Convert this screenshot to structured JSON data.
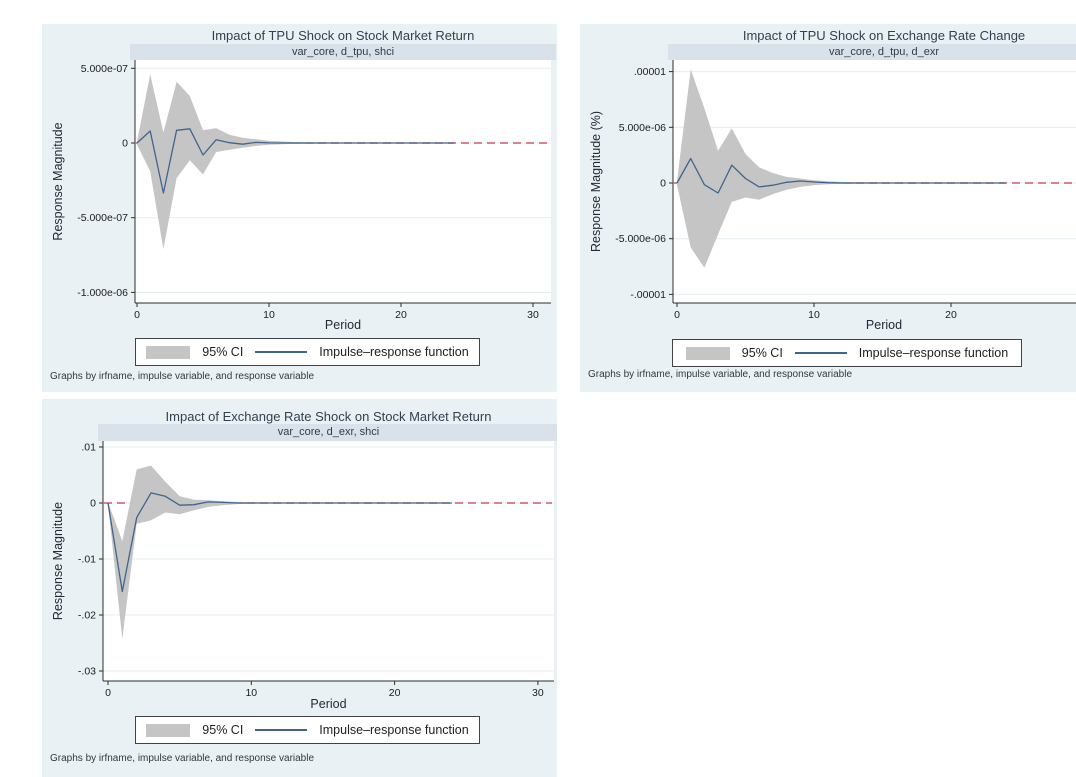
{
  "colors": {
    "canvas_background": "#ffffff",
    "tile_background": "#eaf1f5",
    "subtitle_band": "#d9e2ea",
    "plot_background": "#ffffff",
    "gridline": "#e3ecf1",
    "axis": "#2c2c2c",
    "ci_band": "#c5c5c5",
    "irf_line": "#41648c",
    "zero_line_red": "#cd5869",
    "title_text": "#32414f"
  },
  "chart_data": [
    {
      "type": "area+line",
      "title": "Impact of TPU Shock on Stock Market Return",
      "subtitle": "var_core, d_tpu, shci",
      "xlabel": "Period",
      "ylabel": "Response Magnitude",
      "footnote": "Graphs by irfname, impulse variable, and response variable",
      "legend_ci": "95% CI",
      "legend_irf": "Impulse–response function",
      "legend_position": "bottom-center",
      "grid": true,
      "xlim": [
        0,
        30
      ],
      "ylim": [
        -1.07e-06,
        5.6e-07
      ],
      "xticks": [
        0,
        10,
        20,
        30
      ],
      "yticks": [
        {
          "label": "5.000e-07",
          "value": 5e-07
        },
        {
          "label": "0",
          "value": 0
        },
        {
          "label": "-5.000e-07",
          "value": -5e-07
        },
        {
          "label": "-1.000e-06",
          "value": -1e-06
        }
      ],
      "zero_reference_line": {
        "value": 0,
        "style": "dashed"
      },
      "periods": [
        0,
        1,
        2,
        3,
        4,
        5,
        6,
        7,
        8,
        9,
        10,
        11,
        12,
        13,
        14,
        15,
        16,
        17,
        18,
        19,
        20,
        21,
        22,
        23,
        24
      ],
      "irf": [
        0,
        8e-08,
        -3.35e-07,
        8.5e-08,
        9.5e-08,
        -8e-08,
        2.2e-08,
        2e-09,
        -8e-09,
        4e-09,
        1e-09,
        0,
        0,
        0,
        0,
        0,
        0,
        0,
        0,
        0,
        0,
        0,
        0,
        0,
        0
      ],
      "ci_upper": [
        1e-08,
        4.6e-07,
        7e-08,
        4.1e-07,
        3.15e-07,
        8.5e-08,
        1e-07,
        5.5e-08,
        3.5e-08,
        2.5e-08,
        1.5e-08,
        1e-08,
        7e-09,
        5e-09,
        4e-09,
        3e-09,
        3e-09,
        2e-09,
        2e-09,
        2e-09,
        2e-09,
        2e-09,
        2e-09,
        2e-09,
        2e-09
      ],
      "ci_lower": [
        -1e-08,
        -1.9e-07,
        -7.1e-07,
        -2.35e-07,
        -1.15e-07,
        -2.1e-07,
        -6e-08,
        -4.5e-08,
        -3.2e-08,
        -2e-08,
        -1.2e-08,
        -8e-09,
        -6e-09,
        -5e-09,
        -4e-09,
        -3e-09,
        -3e-09,
        -2e-09,
        -2e-09,
        -2e-09,
        -2e-09,
        -2e-09,
        -2e-09,
        -2e-09,
        -2e-09
      ]
    },
    {
      "type": "area+line",
      "title": "Impact of TPU Shock on Exchange Rate Change",
      "subtitle": "var_core, d_tpu, d_exr",
      "xlabel": "Period",
      "ylabel": "Response Magnitude (%)",
      "footnote": "Graphs by irfname, impulse variable, and response variable",
      "legend_ci": "95% CI",
      "legend_irf": "Impulse–response function",
      "legend_position": "bottom-center",
      "grid": true,
      "xlim": [
        0,
        30
      ],
      "ylim": [
        -1.08e-05,
        1.1e-05
      ],
      "xticks": [
        0,
        10,
        20,
        30
      ],
      "yticks": [
        {
          "label": ".00001",
          "value": 1e-05
        },
        {
          "label": "5.000e-06",
          "value": 5e-06
        },
        {
          "label": "0",
          "value": 0
        },
        {
          "label": "-5.000e-06",
          "value": -5e-06
        },
        {
          "label": "-.00001",
          "value": -1e-05
        }
      ],
      "zero_reference_line": {
        "value": 0,
        "style": "dashed"
      },
      "periods": [
        0,
        1,
        2,
        3,
        4,
        5,
        6,
        7,
        8,
        9,
        10,
        11,
        12,
        13,
        14,
        15,
        16,
        17,
        18,
        19,
        20,
        21,
        22,
        23,
        24
      ],
      "irf": [
        0,
        2.2e-06,
        -1.5e-07,
        -9e-07,
        1.6e-06,
        4e-07,
        -3.5e-07,
        -2e-07,
        6e-08,
        1.8e-07,
        9e-08,
        3e-08,
        0,
        0,
        0,
        0,
        0,
        0,
        0,
        0,
        0,
        0,
        0,
        0,
        0
      ],
      "ci_upper": [
        1.5e-07,
        1.02e-05,
        6.7e-06,
        2.9e-06,
        4.9e-06,
        2.6e-06,
        1.4e-06,
        9e-07,
        5.5e-07,
        4e-07,
        2.5e-07,
        1.5e-07,
        1e-07,
        7e-08,
        5e-08,
        4e-08,
        3e-08,
        3e-08,
        2e-08,
        2e-08,
        2e-08,
        2e-08,
        2e-08,
        2e-08,
        2e-08
      ],
      "ci_lower": [
        -1.5e-07,
        -5.8e-06,
        -7.6e-06,
        -4.6e-06,
        -1.7e-06,
        -1.3e-06,
        -1.5e-06,
        -1e-06,
        -6e-07,
        -3.5e-07,
        -2e-07,
        -1.2e-07,
        -8e-08,
        -6e-08,
        -5e-08,
        -4e-08,
        -3e-08,
        -3e-08,
        -2e-08,
        -2e-08,
        -2e-08,
        -2e-08,
        -2e-08,
        -2e-08,
        -2e-08
      ]
    },
    {
      "type": "area+line",
      "title": "Impact of Exchange Rate Shock on Stock Market Return",
      "subtitle": "var_core, d_exr, shci",
      "xlabel": "Period",
      "ylabel": "Response Magnitude",
      "footnote": "Graphs by irfname, impulse variable, and response variable",
      "legend_ci": "95% CI",
      "legend_irf": "Impulse–response function",
      "legend_position": "bottom-center",
      "grid": true,
      "xlim": [
        0,
        30
      ],
      "ylim": [
        -0.0318,
        0.0111
      ],
      "xticks": [
        0,
        10,
        20,
        30
      ],
      "yticks": [
        {
          "label": ".01",
          "value": 0.01
        },
        {
          "label": "0",
          "value": 0
        },
        {
          "label": "-.01",
          "value": -0.01
        },
        {
          "label": "-.02",
          "value": -0.02
        },
        {
          "label": "-.03",
          "value": -0.03
        }
      ],
      "zero_reference_line": {
        "value": 0,
        "style": "dashed"
      },
      "periods": [
        0,
        1,
        2,
        3,
        4,
        5,
        6,
        7,
        8,
        9,
        10,
        11,
        12,
        13,
        14,
        15,
        16,
        17,
        18,
        19,
        20,
        21,
        22,
        23,
        24
      ],
      "irf": [
        0,
        -0.0158,
        -0.0026,
        0.0018,
        0.0012,
        -0.0004,
        -0.0003,
        0.0002,
        0.0001,
        0,
        0,
        0,
        0,
        0,
        0,
        0,
        0,
        0,
        0,
        0,
        0,
        0,
        0,
        0,
        0
      ],
      "ci_upper": [
        0.0002,
        -0.0068,
        0.006,
        0.0067,
        0.0038,
        0.0012,
        0.0006,
        0.0005,
        0.0003,
        0.0002,
        0.0001,
        0.0001,
        5e-05,
        4e-05,
        3e-05,
        2e-05,
        2e-05,
        1e-05,
        1e-05,
        1e-05,
        1e-05,
        1e-05,
        1e-05,
        1e-05,
        1e-05
      ],
      "ci_lower": [
        -0.0002,
        -0.0243,
        -0.0037,
        -0.0031,
        -0.0017,
        -0.002,
        -0.0013,
        -0.0007,
        -0.0004,
        -0.0002,
        -0.0001,
        -0.0001,
        -5e-05,
        -4e-05,
        -3e-05,
        -2e-05,
        -2e-05,
        -1e-05,
        -1e-05,
        -1e-05,
        -1e-05,
        -1e-05,
        -1e-05,
        -1e-05,
        -1e-05
      ]
    }
  ]
}
